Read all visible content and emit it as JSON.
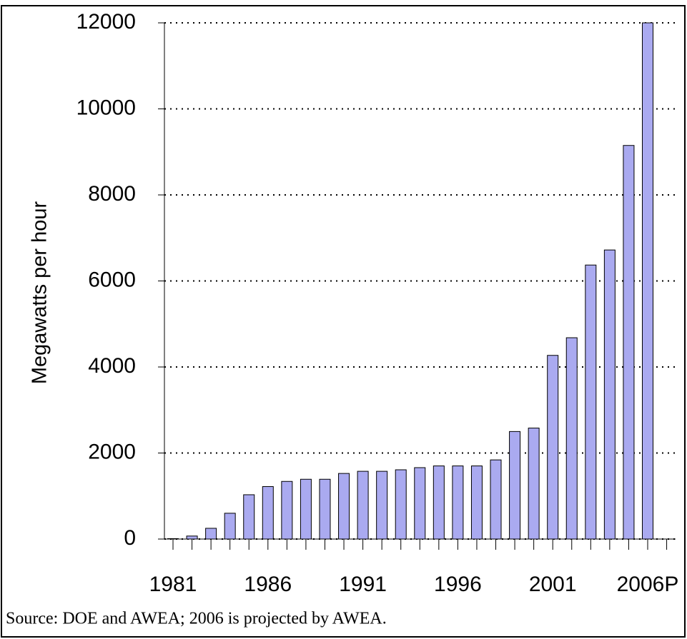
{
  "chart_data": {
    "type": "bar",
    "y_label": "Megawatts per hour",
    "source": "Source: DOE and AWEA; 2006 is projected by AWEA.",
    "categories": [
      "1981",
      null,
      null,
      null,
      null,
      "1986",
      null,
      null,
      null,
      null,
      "1991",
      null,
      null,
      null,
      null,
      "1996",
      null,
      null,
      null,
      null,
      "2001",
      null,
      null,
      null,
      null,
      "2006P"
    ],
    "values": [
      10,
      70,
      250,
      600,
      1030,
      1220,
      1340,
      1390,
      1390,
      1525,
      1575,
      1575,
      1610,
      1660,
      1700,
      1700,
      1700,
      1840,
      2500,
      2580,
      4270,
      4680,
      6370,
      6720,
      9150,
      12000
    ],
    "color": "#aaaaf0",
    "ylim": [
      0,
      12000
    ],
    "yticks": [
      0,
      2000,
      4000,
      6000,
      8000,
      10000,
      12000
    ],
    "grid": true
  }
}
